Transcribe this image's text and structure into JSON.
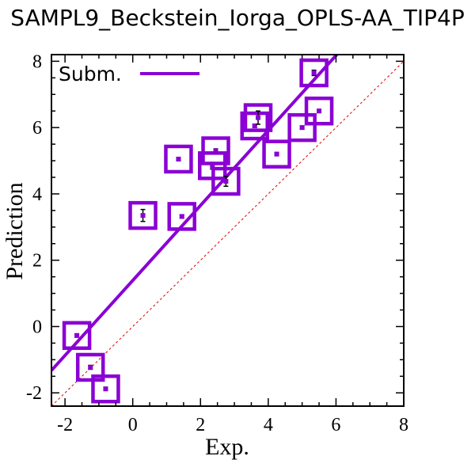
{
  "chart_data": {
    "type": "scatter",
    "title": "SAMPL9_Beckstein_Iorga_OPLS-AA_TIP4P",
    "xlabel": "Exp.",
    "ylabel": "Prediction",
    "xlim": [
      -2.4,
      8.0
    ],
    "ylim": [
      -2.4,
      8.2
    ],
    "x_ticks": [
      -2,
      0,
      2,
      4,
      6,
      8
    ],
    "y_ticks": [
      -2,
      0,
      2,
      4,
      6,
      8
    ],
    "x_tick_labels": [
      "-2",
      "0",
      "2",
      "4",
      "6",
      "8"
    ],
    "y_tick_labels": [
      "-2",
      "0",
      "2",
      "4",
      "6",
      "8"
    ],
    "legend": {
      "entries": [
        "Subm."
      ],
      "placement": "top-left"
    },
    "colors": {
      "series": "#8a00d4",
      "diagonal": "#e00000",
      "axes": "#000000"
    },
    "series": [
      {
        "name": "Subm.",
        "points": [
          {
            "x": -1.65,
            "y": -0.27,
            "err": 0.05
          },
          {
            "x": -1.25,
            "y": -1.23,
            "err": 0.06
          },
          {
            "x": -0.8,
            "y": -1.88,
            "err": 0.05
          },
          {
            "x": 0.3,
            "y": 3.35,
            "err": 0.18
          },
          {
            "x": 1.35,
            "y": 5.05,
            "err": 0.05
          },
          {
            "x": 1.45,
            "y": 3.32,
            "err": 0.05
          },
          {
            "x": 2.35,
            "y": 4.85,
            "err": 0.1
          },
          {
            "x": 2.45,
            "y": 5.3,
            "err": 0.06
          },
          {
            "x": 2.75,
            "y": 4.38,
            "err": 0.15
          },
          {
            "x": 3.6,
            "y": 6.05,
            "err": 0.05
          },
          {
            "x": 3.7,
            "y": 6.3,
            "err": 0.2
          },
          {
            "x": 4.25,
            "y": 5.2,
            "err": 0.05
          },
          {
            "x": 5.0,
            "y": 6.0,
            "err": 0.05
          },
          {
            "x": 5.35,
            "y": 7.65,
            "err": 0.08
          },
          {
            "x": 5.5,
            "y": 6.5,
            "err": 0.05
          }
        ]
      }
    ],
    "fit_line": {
      "slope": 1.131,
      "intercept": 1.39
    },
    "diagonal": true,
    "grid": false
  }
}
